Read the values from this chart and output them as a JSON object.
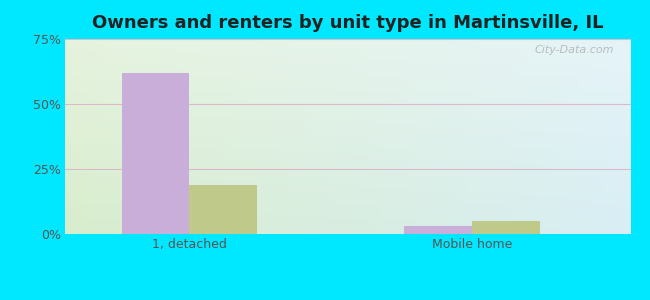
{
  "title": "Owners and renters by unit type in Martinsville, IL",
  "categories": [
    "1, detached",
    "Mobile home"
  ],
  "owner_values": [
    62,
    3
  ],
  "renter_values": [
    19,
    5
  ],
  "owner_color": "#c9aed9",
  "renter_color": "#bec98a",
  "background_outer": "#00e8ff",
  "ylim": [
    0,
    75
  ],
  "yticks": [
    0,
    25,
    50,
    75
  ],
  "ytick_labels": [
    "0%",
    "25%",
    "50%",
    "75%"
  ],
  "bar_width": 0.12,
  "group_positions": [
    0.22,
    0.72
  ],
  "watermark": "City-Data.com",
  "title_fontsize": 13,
  "tick_fontsize": 9,
  "legend_fontsize": 9,
  "grid_color": "#e0b8cc",
  "tick_color": "#555555",
  "bg_left_color": "#d8edcc",
  "bg_right_color": "#d8eef5"
}
